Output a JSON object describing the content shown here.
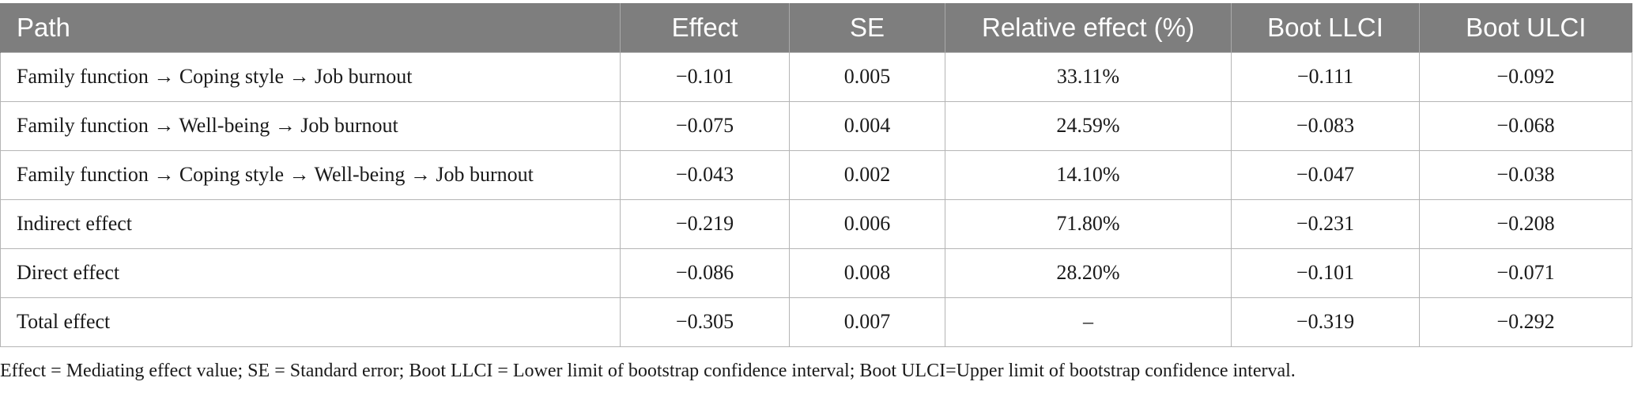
{
  "table": {
    "headers": [
      "Path",
      "Effect",
      "SE",
      "Relative effect (%)",
      "Boot LLCI",
      "Boot ULCI"
    ],
    "rows": [
      [
        "Family function → Coping style → Job burnout",
        "−0.101",
        "0.005",
        "33.11%",
        "−0.111",
        "−0.092"
      ],
      [
        "Family function → Well-being → Job burnout",
        "−0.075",
        "0.004",
        "24.59%",
        "−0.083",
        "−0.068"
      ],
      [
        "Family function → Coping style → Well-being → Job burnout",
        "−0.043",
        "0.002",
        "14.10%",
        "−0.047",
        "−0.038"
      ],
      [
        "Indirect effect",
        "−0.219",
        "0.006",
        "71.80%",
        "−0.231",
        "−0.208"
      ],
      [
        "Direct effect",
        "−0.086",
        "0.008",
        "28.20%",
        "−0.101",
        "−0.071"
      ],
      [
        "Total effect",
        "−0.305",
        "0.007",
        "–",
        "−0.319",
        "−0.292"
      ]
    ]
  },
  "footnote": "Effect = Mediating effect value; SE = Standard error; Boot LLCI = Lower limit of bootstrap confidence interval; Boot ULCI=Upper limit of bootstrap confidence interval.",
  "colors": {
    "header_bg": "#7e7e7e",
    "header_text": "#ffffff",
    "grid": "#b5b5b5"
  }
}
